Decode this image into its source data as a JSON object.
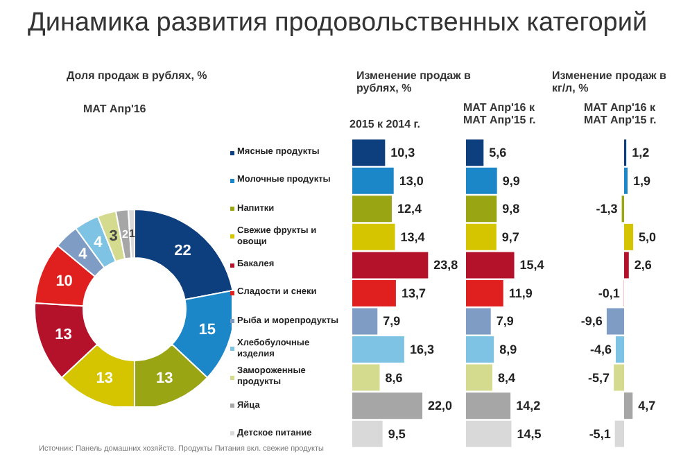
{
  "chart_data": [
    {
      "type": "donut",
      "title": "Динамика развития продовольственных категорий",
      "subtitle": "Доля продаж в рублях, %",
      "annotations": [
        "MAT Апр'16",
        "Источник: Панель домашних хозяйств. Продукты Питания вкл. свежие продукты"
      ],
      "categories": [
        "Мясные продукты",
        "Молочные продукты",
        "Напитки",
        "Свежие фрукты и овощи",
        "Бакалея",
        "Сладости и снеки",
        "Рыба и морепродукты",
        "Хлебобулочные изделия",
        "Замороженные продукты",
        "Яйца",
        "Детское питание"
      ],
      "values": [
        22,
        15,
        13,
        13,
        13,
        10,
        4,
        4,
        3,
        2,
        1
      ],
      "colors": [
        "#0d3f7f",
        "#1b87c8",
        "#9aa514",
        "#d4c500",
        "#b3122a",
        "#e0201f",
        "#7f9cc4",
        "#7ec3e3",
        "#d4db8e",
        "#a6a6a6",
        "#d9d9d9"
      ],
      "data_labels": true,
      "legend": "right"
    },
    {
      "type": "bar",
      "orientation": "horizontal",
      "title": "Изменение продаж в рублях, %",
      "subtitle": "2015 к 2014 г.",
      "categories": [
        null,
        null,
        null,
        null,
        null,
        null,
        null,
        null,
        null,
        null,
        null
      ],
      "values": [
        10.3,
        13.0,
        12.4,
        13.4,
        23.8,
        13.7,
        7.9,
        16.3,
        8.6,
        22.0,
        9.5
      ],
      "value_labels": [
        "10,3",
        "13,0",
        "12,4",
        "13,4",
        "23,8",
        "13,7",
        "7,9",
        "16,3",
        "8,6",
        "22,0",
        "9,5"
      ],
      "colors": [
        "#0d3f7f",
        "#1b87c8",
        "#9aa514",
        "#d4c500",
        "#b3122a",
        "#e0201f",
        "#7f9cc4",
        "#7ec3e3",
        "#d4db8e",
        "#a6a6a6",
        "#d9d9d9"
      ],
      "tick_labels": false
    },
    {
      "type": "bar",
      "orientation": "horizontal",
      "subtitle": "MAT Апр'16 к MAT Апр'15 г.",
      "categories": [
        null,
        null,
        null,
        null,
        null,
        null,
        null,
        null,
        null,
        null,
        null
      ],
      "values": [
        5.6,
        9.9,
        9.8,
        9.7,
        15.4,
        11.9,
        7.9,
        8.9,
        8.4,
        14.2,
        14.5
      ],
      "value_labels": [
        "5,6",
        "9,9",
        "9,8",
        "9,7",
        "15,4",
        "11,9",
        "7,9",
        "8,9",
        "8,4",
        "14,2",
        "14,5"
      ],
      "colors": [
        "#0d3f7f",
        "#1b87c8",
        "#9aa514",
        "#d4c500",
        "#b3122a",
        "#e0201f",
        "#7f9cc4",
        "#7ec3e3",
        "#d4db8e",
        "#a6a6a6",
        "#d9d9d9"
      ],
      "tick_labels": false
    },
    {
      "type": "bar",
      "orientation": "horizontal",
      "title": "Изменение продаж в кг/л, %",
      "subtitle": "MAT Апр'16 к MAT Апр'15 г.",
      "categories": [
        null,
        null,
        null,
        null,
        null,
        null,
        null,
        null,
        null,
        null,
        null
      ],
      "values": [
        1.2,
        1.9,
        -1.3,
        5.0,
        2.6,
        -0.1,
        -9.6,
        -4.6,
        -5.7,
        4.7,
        -5.1
      ],
      "value_labels": [
        "1,2",
        "1,9",
        "-1,3",
        "5,0",
        "2,6",
        "-0,1",
        "-9,6",
        "-4,6",
        "-5,7",
        "4,7",
        "-5,1"
      ],
      "colors": [
        "#0d3f7f",
        "#1b87c8",
        "#9aa514",
        "#d4c500",
        "#b3122a",
        "#e0201f",
        "#7f9cc4",
        "#7ec3e3",
        "#d4db8e",
        "#a6a6a6",
        "#d9d9d9"
      ],
      "tick_labels": false
    }
  ]
}
